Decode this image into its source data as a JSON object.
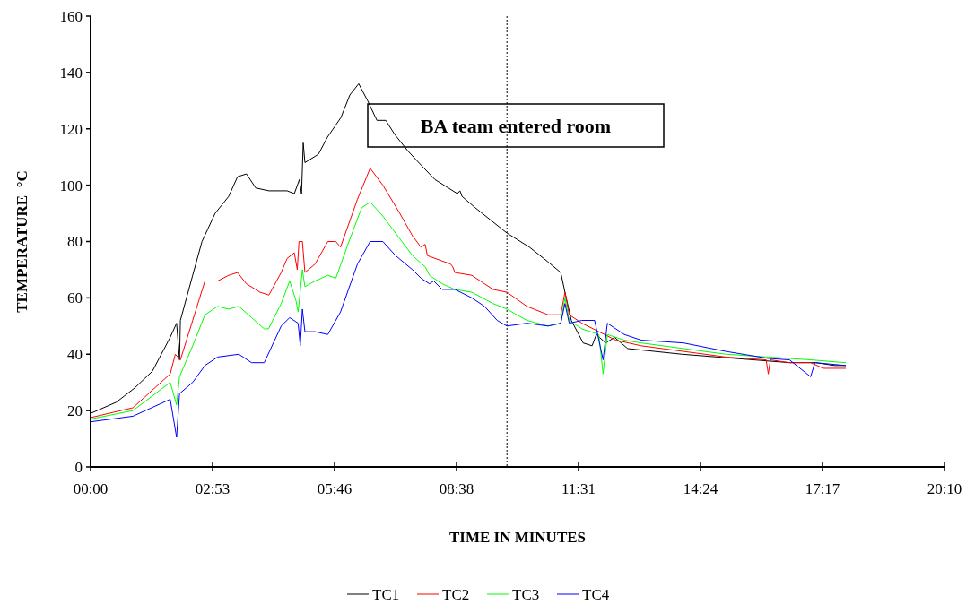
{
  "chart_data": {
    "type": "line",
    "xlabel": "TIME IN MINUTES",
    "ylabel": "TEMPERATURE  °C",
    "xlim": [
      0,
      20.16
    ],
    "xticks": [
      {
        "value": 0,
        "label": "00:00"
      },
      {
        "value": 2.88,
        "label": "02:53"
      },
      {
        "value": 5.76,
        "label": "05:46"
      },
      {
        "value": 8.64,
        "label": "08:38"
      },
      {
        "value": 11.52,
        "label": "11:31"
      },
      {
        "value": 14.4,
        "label": "14:24"
      },
      {
        "value": 17.28,
        "label": "17:17"
      },
      {
        "value": 20.16,
        "label": "20:10"
      }
    ],
    "ylim": [
      0,
      160
    ],
    "yticks": [
      0,
      20,
      40,
      60,
      80,
      100,
      120,
      140,
      160
    ],
    "grid": false,
    "legend": "bottom",
    "line_style": "solid",
    "marker": "none",
    "ref_lines": [
      {
        "axis": "x",
        "value": 9.83,
        "line_style": "dotted",
        "color": "#000000"
      }
    ],
    "annotations": [
      "BA team entered room"
    ],
    "series": [
      {
        "name": "TC1",
        "color": "#000000",
        "x": [
          0,
          0.61,
          1.04,
          1.46,
          1.88,
          2.03,
          2.1,
          2.12,
          2.41,
          2.63,
          2.94,
          3.26,
          3.47,
          3.68,
          3.9,
          4.21,
          4.64,
          4.81,
          4.93,
          4.98,
          5.02,
          5.06,
          5.38,
          5.59,
          5.91,
          6.12,
          6.33,
          6.54,
          6.76,
          6.97,
          7.18,
          7.5,
          7.81,
          8.13,
          8.66,
          8.72,
          8.77,
          9.08,
          9.83,
          10.36,
          10.78,
          11.1,
          11.2,
          11.35,
          11.63,
          11.84,
          11.94,
          12.16,
          12.37,
          12.68,
          13.32,
          13.96,
          14.8,
          15.65,
          16.5,
          17.13,
          17.56,
          17.83
        ],
        "values": [
          19,
          23,
          28,
          34,
          46,
          51,
          38,
          52,
          68,
          80,
          90,
          96,
          103,
          104,
          99,
          98,
          98,
          97,
          102,
          97,
          115,
          108,
          111,
          117,
          124,
          132,
          136,
          130,
          123,
          123,
          118,
          112,
          107,
          102,
          97,
          98,
          96,
          92,
          83,
          78,
          73,
          69,
          62,
          52,
          44,
          43,
          47,
          44,
          46,
          42,
          41,
          40,
          39,
          38,
          37,
          37,
          36,
          36
        ]
      },
      {
        "name": "TC2",
        "color": "#ff0000",
        "x": [
          0,
          1,
          1.88,
          2.0,
          2.12,
          2.41,
          2.7,
          3.0,
          3.26,
          3.47,
          3.68,
          4.0,
          4.21,
          4.5,
          4.64,
          4.81,
          4.88,
          4.92,
          5.0,
          5.06,
          5.3,
          5.6,
          5.79,
          5.9,
          6.3,
          6.6,
          6.9,
          7.3,
          7.6,
          7.8,
          7.9,
          7.95,
          8.5,
          8.55,
          8.6,
          9.0,
          9.5,
          9.83,
          10.3,
          10.8,
          11.1,
          11.2,
          11.3,
          11.6,
          12.0,
          12.4,
          13.0,
          14.0,
          15.0,
          15.95,
          16.0,
          16.05,
          16.5,
          17.0,
          17.3,
          17.83
        ],
        "values": [
          17.5,
          21,
          33,
          40,
          38,
          52,
          66,
          66,
          68,
          69,
          65,
          62,
          61,
          69,
          74,
          76,
          70,
          80,
          80,
          69,
          72,
          80,
          80,
          78,
          95,
          106,
          100,
          90,
          82,
          78,
          79,
          75,
          72,
          71,
          69,
          68,
          63,
          62,
          57,
          54,
          54,
          62,
          54,
          51,
          48,
          45,
          43,
          41,
          39,
          38,
          33,
          38,
          37,
          37,
          35,
          35
        ]
      },
      {
        "name": "TC3",
        "color": "#00ff00",
        "x": [
          0,
          1,
          1.88,
          2.03,
          2.1,
          2.41,
          2.7,
          3.0,
          3.26,
          3.5,
          3.8,
          4.1,
          4.2,
          4.5,
          4.7,
          4.85,
          4.9,
          5.0,
          5.06,
          5.3,
          5.6,
          5.79,
          6.1,
          6.4,
          6.6,
          6.9,
          7.3,
          7.6,
          7.9,
          8.0,
          8.3,
          8.6,
          9.0,
          9.5,
          9.83,
          10.3,
          10.8,
          11.1,
          11.2,
          11.3,
          11.6,
          12.0,
          12.1,
          12.2,
          12.6,
          13.0,
          14,
          15,
          16,
          17,
          17.83
        ],
        "values": [
          17,
          20,
          30,
          22,
          32,
          43,
          54,
          57,
          56,
          57,
          53,
          49,
          49,
          58,
          66,
          59,
          55,
          70,
          64,
          66,
          68,
          67,
          80,
          92,
          94,
          89,
          81,
          75,
          71,
          68,
          65,
          63,
          62,
          58,
          56,
          52,
          50,
          51,
          60,
          52,
          49,
          47,
          33,
          47,
          45,
          44,
          42,
          40,
          39,
          38,
          37
        ]
      },
      {
        "name": "TC4",
        "color": "#0000ff",
        "x": [
          0,
          1,
          1.88,
          2.03,
          2.1,
          2.41,
          2.7,
          3.0,
          3.5,
          3.8,
          4.1,
          4.5,
          4.7,
          4.9,
          4.95,
          5.0,
          5.06,
          5.3,
          5.6,
          5.9,
          6.3,
          6.6,
          6.9,
          7.2,
          7.6,
          7.8,
          8.0,
          8.1,
          8.3,
          8.6,
          9.0,
          9.3,
          9.6,
          9.83,
          10.3,
          10.8,
          11.1,
          11.2,
          11.3,
          11.6,
          11.9,
          12.1,
          12.2,
          12.6,
          13.0,
          14,
          15,
          16,
          16.5,
          17.0,
          17.1,
          17.83
        ],
        "values": [
          16,
          18,
          24,
          10.5,
          26,
          30,
          36,
          39,
          40,
          37,
          37,
          50,
          53,
          51,
          43,
          56,
          48,
          48,
          47,
          55,
          72,
          80,
          80,
          75,
          70,
          67,
          65,
          66,
          63,
          63,
          60,
          57,
          52,
          50,
          51,
          50,
          51,
          58,
          51,
          52,
          52,
          38,
          51,
          47,
          45,
          44,
          41,
          38.5,
          38,
          32,
          37,
          36
        ]
      }
    ]
  }
}
